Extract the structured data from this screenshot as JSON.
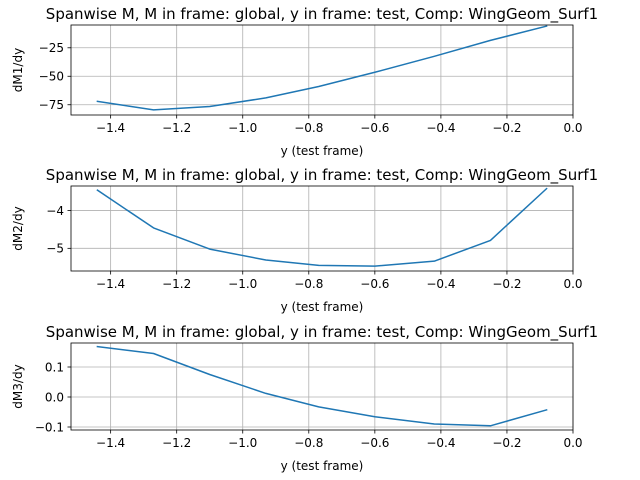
{
  "colors": {
    "series": "#1f77b4",
    "grid": "#b0b0b0",
    "axis": "#000000"
  },
  "chart_data": [
    {
      "type": "line",
      "title": "Spanwise M, M in frame: global, y in frame: test, Comp: WingGeom_Surf1",
      "xlabel": "y (test frame)",
      "ylabel": "dM1/dy",
      "grid": true,
      "xlim": [
        -1.52,
        0.0
      ],
      "ylim": [
        -84,
        -5
      ],
      "xticks": [
        -1.4,
        -1.2,
        -1.0,
        -0.8,
        -0.6,
        -0.4,
        -0.2,
        0.0
      ],
      "xtick_labels": [
        "−1.4",
        "−1.2",
        "−1.0",
        "−0.8",
        "−0.6",
        "−0.4",
        "−0.2",
        "0.0"
      ],
      "yticks": [
        -75,
        -50,
        -25
      ],
      "ytick_labels": [
        "−75",
        "−50",
        "−25"
      ],
      "x": [
        -1.44,
        -1.27,
        -1.1,
        -0.93,
        -0.77,
        -0.6,
        -0.42,
        -0.25,
        -0.08
      ],
      "y": [
        -72,
        -79.5,
        -76.5,
        -69,
        -59,
        -46.5,
        -32.5,
        -18.5,
        -6
      ]
    },
    {
      "type": "line",
      "title": "Spanwise M, M in frame: global, y in frame: test, Comp: WingGeom_Surf1",
      "xlabel": "y (test frame)",
      "ylabel": "dM2/dy",
      "grid": true,
      "xlim": [
        -1.52,
        0.0
      ],
      "ylim": [
        -5.6,
        -3.35
      ],
      "xticks": [
        -1.4,
        -1.2,
        -1.0,
        -0.8,
        -0.6,
        -0.4,
        -0.2,
        0.0
      ],
      "xtick_labels": [
        "−1.4",
        "−1.2",
        "−1.0",
        "−0.8",
        "−0.6",
        "−0.4",
        "−0.2",
        "0.0"
      ],
      "yticks": [
        -5,
        -4
      ],
      "ytick_labels": [
        "−5",
        "−4"
      ],
      "x": [
        -1.44,
        -1.27,
        -1.1,
        -0.93,
        -0.77,
        -0.6,
        -0.42,
        -0.25,
        -0.08
      ],
      "y": [
        -3.46,
        -4.46,
        -5.02,
        -5.31,
        -5.45,
        -5.47,
        -5.34,
        -4.79,
        -3.42
      ]
    },
    {
      "type": "line",
      "title": "Spanwise M, M in frame: global, y in frame: test, Comp: WingGeom_Surf1",
      "xlabel": "y (test frame)",
      "ylabel": "dM3/dy",
      "grid": true,
      "xlim": [
        -1.52,
        0.0
      ],
      "ylim": [
        -0.11,
        0.18
      ],
      "xticks": [
        -1.4,
        -1.2,
        -1.0,
        -0.8,
        -0.6,
        -0.4,
        -0.2,
        0.0
      ],
      "xtick_labels": [
        "−1.4",
        "−1.2",
        "−1.0",
        "−0.8",
        "−0.6",
        "−0.4",
        "−0.2",
        "0.0"
      ],
      "yticks": [
        -0.1,
        0.0,
        0.1
      ],
      "ytick_labels": [
        "−0.1",
        "0.0",
        "0.1"
      ],
      "x": [
        -1.44,
        -1.27,
        -1.1,
        -0.93,
        -0.77,
        -0.6,
        -0.42,
        -0.25,
        -0.08
      ],
      "y": [
        0.168,
        0.145,
        0.075,
        0.012,
        -0.033,
        -0.066,
        -0.09,
        -0.096,
        -0.043
      ]
    }
  ]
}
